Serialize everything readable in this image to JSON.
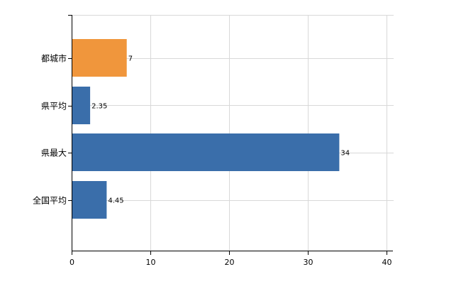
{
  "chart_data": {
    "type": "bar",
    "orientation": "horizontal",
    "categories": [
      "都城市",
      "県平均",
      "県最大",
      "全国平均"
    ],
    "values": [
      7,
      2.35,
      34,
      4.45
    ],
    "data_labels": [
      "7",
      "2.35",
      "34",
      "4.45"
    ],
    "colors": [
      "#f0963c",
      "#3a6eaa",
      "#3a6eaa",
      "#3a6eaa"
    ],
    "xlim": [
      0,
      40
    ],
    "x_ticks": [
      0,
      10,
      20,
      30,
      40
    ],
    "x_tick_labels": [
      "0",
      "10",
      "20",
      "30",
      "40"
    ],
    "grid": true,
    "grid_color": "#d8d8d8",
    "title": "",
    "xlabel": "",
    "ylabel": ""
  }
}
